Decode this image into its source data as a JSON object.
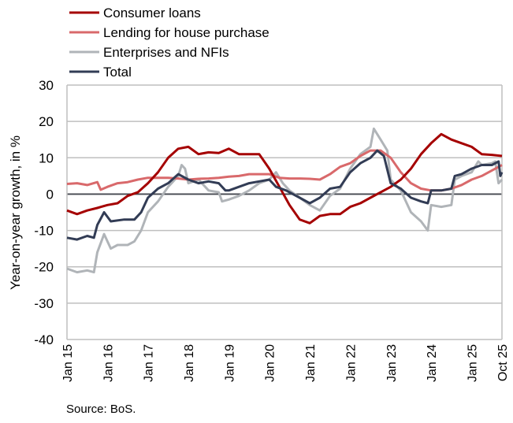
{
  "chart_data": {
    "type": "line",
    "title": "",
    "xlabel": "",
    "ylabel": "Year-on-year growth, in %",
    "ylim": [
      -40,
      30
    ],
    "yticks": [
      30,
      20,
      10,
      0,
      -10,
      -20,
      -30,
      -40
    ],
    "ytick_labels": [
      "30",
      "20",
      "10",
      "0",
      "-10",
      "-20",
      "-30",
      "-40"
    ],
    "x_unit": "months since Jan 2015",
    "xlim": [
      0,
      129
    ],
    "xticks": [
      0,
      12,
      24,
      36,
      48,
      60,
      72,
      84,
      96,
      108,
      120,
      129
    ],
    "xtick_labels": [
      "Jan 15",
      "Jan 16",
      "Jan 17",
      "Jan 18",
      "Jan 19",
      "Jan 20",
      "Jan 21",
      "Jan 22",
      "Jan 23",
      "Jan 24",
      "Jan 25",
      "Oct 25"
    ],
    "grid": true,
    "legend_position": "top-left",
    "source": "Source: BoS.",
    "series": [
      {
        "name": "Consumer loans",
        "color": "#a50000",
        "x": [
          0,
          3,
          6,
          9,
          12,
          15,
          18,
          21,
          24,
          27,
          30,
          33,
          36,
          39,
          42,
          45,
          48,
          51,
          54,
          57,
          60,
          63,
          66,
          69,
          72,
          75,
          78,
          81,
          84,
          87,
          90,
          93,
          96,
          99,
          102,
          105,
          108,
          111,
          114,
          117,
          120,
          123,
          126,
          129
        ],
        "y": [
          -4.5,
          -5.5,
          -4.5,
          -3.8,
          -3,
          -2.5,
          -0.5,
          0.5,
          3,
          6,
          10,
          12.5,
          13,
          11,
          11.5,
          11.3,
          12.5,
          11,
          11,
          11,
          7,
          2,
          -3,
          -7,
          -8,
          -6,
          -5.5,
          -5.5,
          -3.5,
          -2.5,
          -1,
          0.5,
          2,
          4,
          7,
          11,
          14,
          16.5,
          15,
          14,
          13,
          11,
          10.8,
          10.5
        ]
      },
      {
        "name": "Lending for house purchase",
        "color": "#d9696b",
        "x": [
          0,
          3,
          6,
          9,
          10,
          12,
          15,
          18,
          21,
          24,
          27,
          30,
          33,
          36,
          39,
          42,
          45,
          48,
          51,
          54,
          57,
          60,
          63,
          66,
          69,
          72,
          75,
          78,
          81,
          84,
          87,
          90,
          93,
          96,
          99,
          102,
          105,
          108,
          111,
          114,
          117,
          120,
          123,
          126,
          129
        ],
        "y": [
          2.8,
          3,
          2.5,
          3.3,
          1.2,
          2,
          3,
          3.3,
          4,
          4.5,
          4.5,
          4.5,
          4.3,
          4,
          4.2,
          4.3,
          4.5,
          4.8,
          5,
          5.5,
          5.5,
          5.5,
          4.5,
          4.3,
          4.3,
          4.2,
          4,
          5.5,
          7.5,
          8.5,
          10.5,
          12,
          12,
          10,
          6,
          3,
          1.5,
          1,
          1,
          1.5,
          2.5,
          4,
          5,
          6.5,
          8
        ]
      },
      {
        "name": "Enterprises and NFIs",
        "color": "#b0b4b8",
        "x": [
          0,
          3,
          6,
          8,
          9,
          11,
          13,
          15,
          18,
          20,
          22,
          24,
          27,
          30,
          33,
          34,
          35,
          36,
          39,
          42,
          45,
          46,
          48,
          51,
          54,
          57,
          60,
          62,
          64,
          66,
          69,
          72,
          75,
          78,
          81,
          84,
          87,
          90,
          91,
          93,
          95,
          96,
          99,
          102,
          105,
          107,
          108,
          111,
          114,
          115,
          117,
          120,
          122,
          123,
          126,
          127,
          128,
          129
        ],
        "y": [
          -20.5,
          -21.5,
          -21,
          -21.5,
          -16,
          -11,
          -15,
          -14,
          -14,
          -13,
          -10,
          -5,
          -2,
          2,
          5,
          8,
          7,
          3,
          4,
          1,
          0.5,
          -2,
          -1.5,
          -0.5,
          1,
          3,
          4,
          6,
          3,
          1,
          -1,
          -3,
          -4.5,
          -0.5,
          1.5,
          7,
          11,
          13,
          18,
          15,
          12,
          4,
          1,
          -5,
          -7.5,
          -10,
          -3,
          -3.5,
          -3,
          4,
          5,
          6,
          9,
          8,
          8.5,
          9,
          3,
          4
        ]
      },
      {
        "name": "Total",
        "color": "#323c55",
        "x": [
          0,
          3,
          6,
          8,
          9,
          11,
          13,
          17,
          20,
          22,
          24,
          27,
          30,
          33,
          36,
          39,
          42,
          45,
          47,
          48,
          51,
          54,
          57,
          60,
          62,
          65,
          69,
          72,
          75,
          78,
          81,
          84,
          87,
          90,
          92,
          94,
          96,
          99,
          102,
          105,
          107,
          108,
          111,
          114,
          115,
          117,
          120,
          123,
          126,
          128,
          128.5,
          129
        ],
        "y": [
          -12,
          -12.5,
          -11.5,
          -12,
          -8.5,
          -5,
          -7.5,
          -7,
          -7,
          -5,
          -1,
          1.5,
          3,
          5.5,
          4,
          3,
          3.5,
          3,
          1,
          1,
          2,
          3,
          3.5,
          4,
          2,
          1,
          -1,
          -2.5,
          -1,
          1.5,
          2,
          6,
          8.5,
          10,
          12,
          10.5,
          3,
          1.5,
          -1,
          -2,
          -2.5,
          1,
          1,
          1.5,
          5,
          5.5,
          7,
          8,
          8,
          9,
          5,
          6
        ]
      }
    ]
  }
}
